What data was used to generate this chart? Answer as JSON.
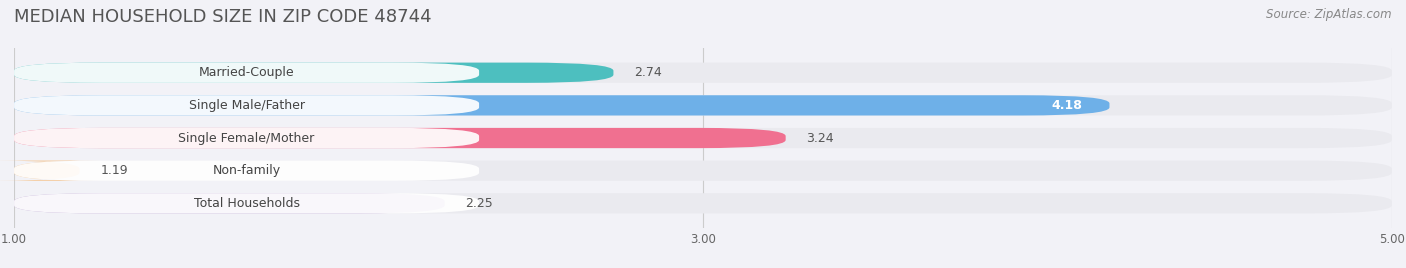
{
  "title": "MEDIAN HOUSEHOLD SIZE IN ZIP CODE 48744",
  "source": "Source: ZipAtlas.com",
  "categories": [
    "Married-Couple",
    "Single Male/Father",
    "Single Female/Mother",
    "Non-family",
    "Total Households"
  ],
  "values": [
    2.74,
    4.18,
    3.24,
    1.19,
    2.25
  ],
  "bar_colors": [
    "#4DBFBF",
    "#6EB0E8",
    "#F07090",
    "#F5C896",
    "#B8A0D0"
  ],
  "bar_bg_color": "#EAEAEF",
  "value_in_bar": [
    false,
    true,
    false,
    false,
    false
  ],
  "xlim": [
    1.0,
    5.0
  ],
  "xticks": [
    1.0,
    3.0,
    5.0
  ],
  "xtick_labels": [
    "1.00",
    "3.00",
    "5.00"
  ],
  "background_color": "#F2F2F7",
  "title_fontsize": 13,
  "label_fontsize": 9,
  "value_fontsize": 9,
  "source_fontsize": 8.5
}
